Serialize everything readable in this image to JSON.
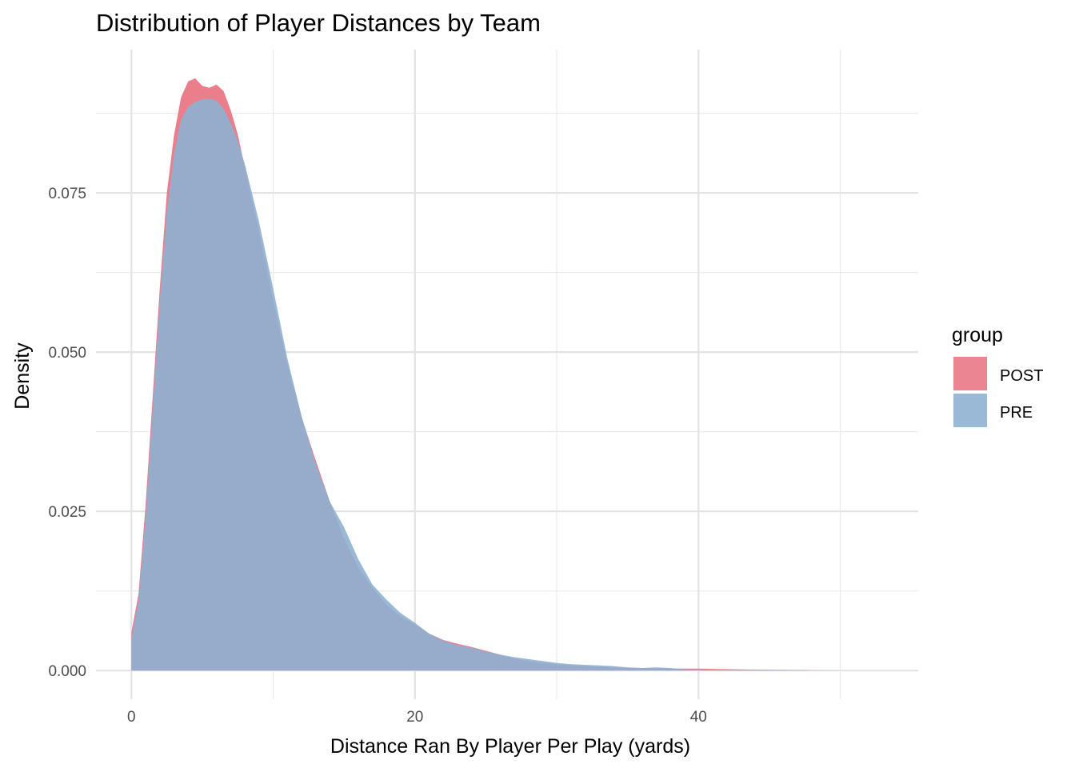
{
  "chart_data": {
    "type": "area",
    "title": "Distribution of Player Distances by Team",
    "xlabel": "Distance Ran By Player Per Play (yards)",
    "ylabel": "Density",
    "xlim": [
      -2.5,
      55.5
    ],
    "ylim": [
      -0.0045,
      0.0975
    ],
    "x_ticks": [
      0,
      20,
      40
    ],
    "x_tick_labels": [
      "0",
      "20",
      "40"
    ],
    "y_ticks": [
      0.0,
      0.025,
      0.05,
      0.075
    ],
    "y_tick_labels": [
      "0.000",
      "0.025",
      "0.050",
      "0.075"
    ],
    "grid": true,
    "legend": {
      "title": "group",
      "position": "right"
    },
    "series": [
      {
        "name": "POST",
        "color": "#E8707E",
        "x": [
          0,
          0.5,
          1,
          1.5,
          2,
          2.5,
          3,
          3.5,
          4,
          4.5,
          5,
          5.5,
          6,
          6.5,
          7,
          7.5,
          8,
          9,
          10,
          11,
          12,
          13,
          14,
          15,
          16,
          17,
          18,
          19,
          20,
          21,
          22,
          23,
          24,
          25,
          26,
          27,
          28,
          29,
          30,
          32,
          34,
          36,
          38,
          40,
          45,
          50,
          53
        ],
        "y": [
          0.006,
          0.012,
          0.026,
          0.043,
          0.06,
          0.075,
          0.084,
          0.09,
          0.0925,
          0.093,
          0.0918,
          0.0915,
          0.092,
          0.091,
          0.088,
          0.0842,
          0.079,
          0.069,
          0.0582,
          0.048,
          0.0398,
          0.033,
          0.0265,
          0.0208,
          0.0162,
          0.013,
          0.0103,
          0.0085,
          0.0072,
          0.0058,
          0.0048,
          0.0042,
          0.0037,
          0.0031,
          0.0025,
          0.0019,
          0.0015,
          0.0012,
          0.001,
          0.0007,
          0.0005,
          0.0004,
          0.0003,
          0.0003,
          0.0001,
          0.0,
          0.0
        ]
      },
      {
        "name": "PRE",
        "color": "#8EB1D2",
        "x": [
          0,
          0.5,
          1,
          1.5,
          2,
          2.5,
          3,
          3.5,
          4,
          4.5,
          5,
          5.5,
          6,
          6.5,
          7,
          7.5,
          8,
          9,
          10,
          11,
          12,
          13,
          14,
          15,
          16,
          17,
          18,
          19,
          20,
          21,
          22,
          23,
          24,
          25,
          26,
          27,
          28,
          29,
          30,
          31,
          32,
          33,
          34,
          35,
          36,
          37,
          38,
          39,
          40,
          42,
          44,
          46,
          48,
          50,
          52,
          53
        ],
        "y": [
          0.005,
          0.011,
          0.024,
          0.041,
          0.058,
          0.072,
          0.081,
          0.0865,
          0.0885,
          0.0893,
          0.0897,
          0.0898,
          0.0895,
          0.0882,
          0.086,
          0.0832,
          0.0795,
          0.0705,
          0.06,
          0.049,
          0.04,
          0.0325,
          0.0265,
          0.0225,
          0.0175,
          0.0135,
          0.0111,
          0.009,
          0.0075,
          0.0058,
          0.0047,
          0.004,
          0.0036,
          0.003,
          0.0025,
          0.0021,
          0.0018,
          0.0015,
          0.0012,
          0.001,
          0.0009,
          0.0008,
          0.0007,
          0.0005,
          0.0004,
          0.0005,
          0.0004,
          0.0002,
          0.0002,
          0.0001,
          0.0001,
          0.0001,
          0.0,
          0.0,
          0.0,
          0.0
        ]
      }
    ]
  }
}
